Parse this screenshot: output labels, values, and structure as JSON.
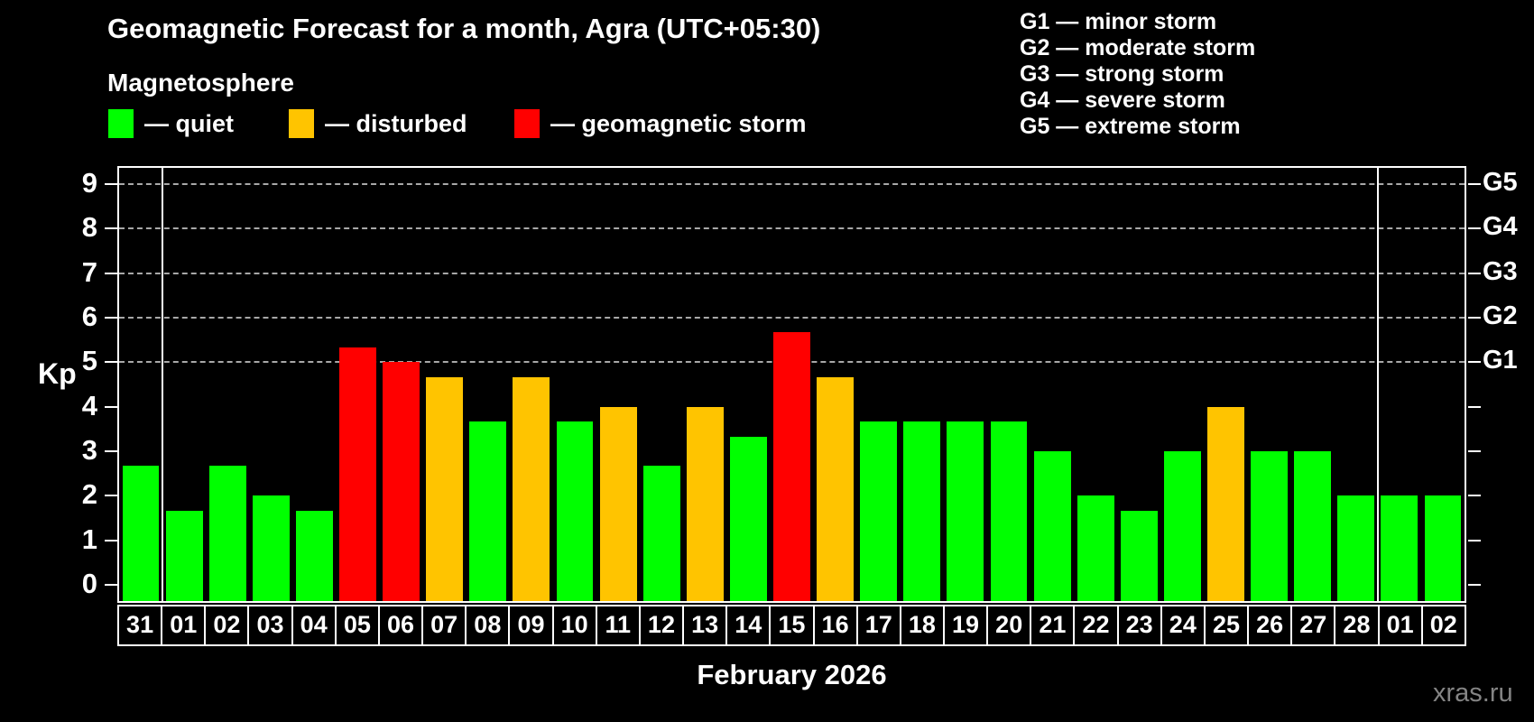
{
  "header": {
    "title": "Geomagnetic Forecast for a month, Agra (UTC+05:30)",
    "subtitle": "Magnetosphere",
    "legend": [
      {
        "key": "quiet",
        "label": "— quiet",
        "color": "#00ff00"
      },
      {
        "key": "disturbed",
        "label": "— disturbed",
        "color": "#ffc400"
      },
      {
        "key": "storm",
        "label": "— geomagnetic storm",
        "color": "#ff0000"
      }
    ],
    "g_scale_legend": [
      "G1 — minor storm",
      "G2 — moderate storm",
      "G3 — strong storm",
      "G4 — severe storm",
      "G5 — extreme storm"
    ]
  },
  "chart_data": {
    "type": "bar",
    "title": "Geomagnetic Forecast for a month, Agra (UTC+05:30)",
    "ylabel_left": "Kp",
    "xlabel": "February 2026",
    "categories": [
      "31",
      "01",
      "02",
      "03",
      "04",
      "05",
      "06",
      "07",
      "08",
      "09",
      "10",
      "11",
      "12",
      "13",
      "14",
      "15",
      "16",
      "17",
      "18",
      "19",
      "20",
      "21",
      "22",
      "23",
      "24",
      "25",
      "26",
      "27",
      "28",
      "01",
      "02"
    ],
    "values": [
      2.67,
      1.67,
      2.67,
      2.0,
      1.67,
      5.33,
      5.0,
      4.67,
      3.67,
      4.67,
      3.67,
      4.0,
      2.67,
      4.0,
      3.33,
      5.67,
      4.67,
      3.67,
      3.67,
      3.67,
      3.67,
      3.0,
      2.0,
      1.67,
      3.0,
      4.0,
      3.0,
      3.0,
      2.0,
      2.0,
      2.0
    ],
    "statuses": [
      "quiet",
      "quiet",
      "quiet",
      "quiet",
      "quiet",
      "storm",
      "storm",
      "disturbed",
      "quiet",
      "disturbed",
      "quiet",
      "disturbed",
      "quiet",
      "disturbed",
      "quiet",
      "storm",
      "disturbed",
      "quiet",
      "quiet",
      "quiet",
      "quiet",
      "quiet",
      "quiet",
      "quiet",
      "quiet",
      "disturbed",
      "quiet",
      "quiet",
      "quiet",
      "quiet",
      "quiet"
    ],
    "colors": {
      "quiet": "#00ff00",
      "disturbed": "#ffc400",
      "storm": "#ff0000"
    },
    "ylim": [
      -0.36,
      9.36
    ],
    "yticks": [
      0,
      1,
      2,
      3,
      4,
      5,
      6,
      7,
      8,
      9
    ],
    "ytick_labels": [
      "0",
      "1",
      "2",
      "3",
      "4",
      "5",
      "6",
      "7",
      "8",
      "9"
    ],
    "gridlines_at": [
      5,
      6,
      7,
      8,
      9
    ],
    "grid_style": "dashed",
    "right_axis_labels": [
      {
        "kp": 9,
        "label": "G5"
      },
      {
        "kp": 8,
        "label": "G4"
      },
      {
        "kp": 7,
        "label": "G3"
      },
      {
        "kp": 6,
        "label": "G2"
      },
      {
        "kp": 5,
        "label": "G1"
      }
    ],
    "month_separator_boundaries": [
      1,
      29
    ],
    "legend_position": "top"
  },
  "footer": {
    "xlabel": "February 2026",
    "watermark": "xras.ru"
  }
}
